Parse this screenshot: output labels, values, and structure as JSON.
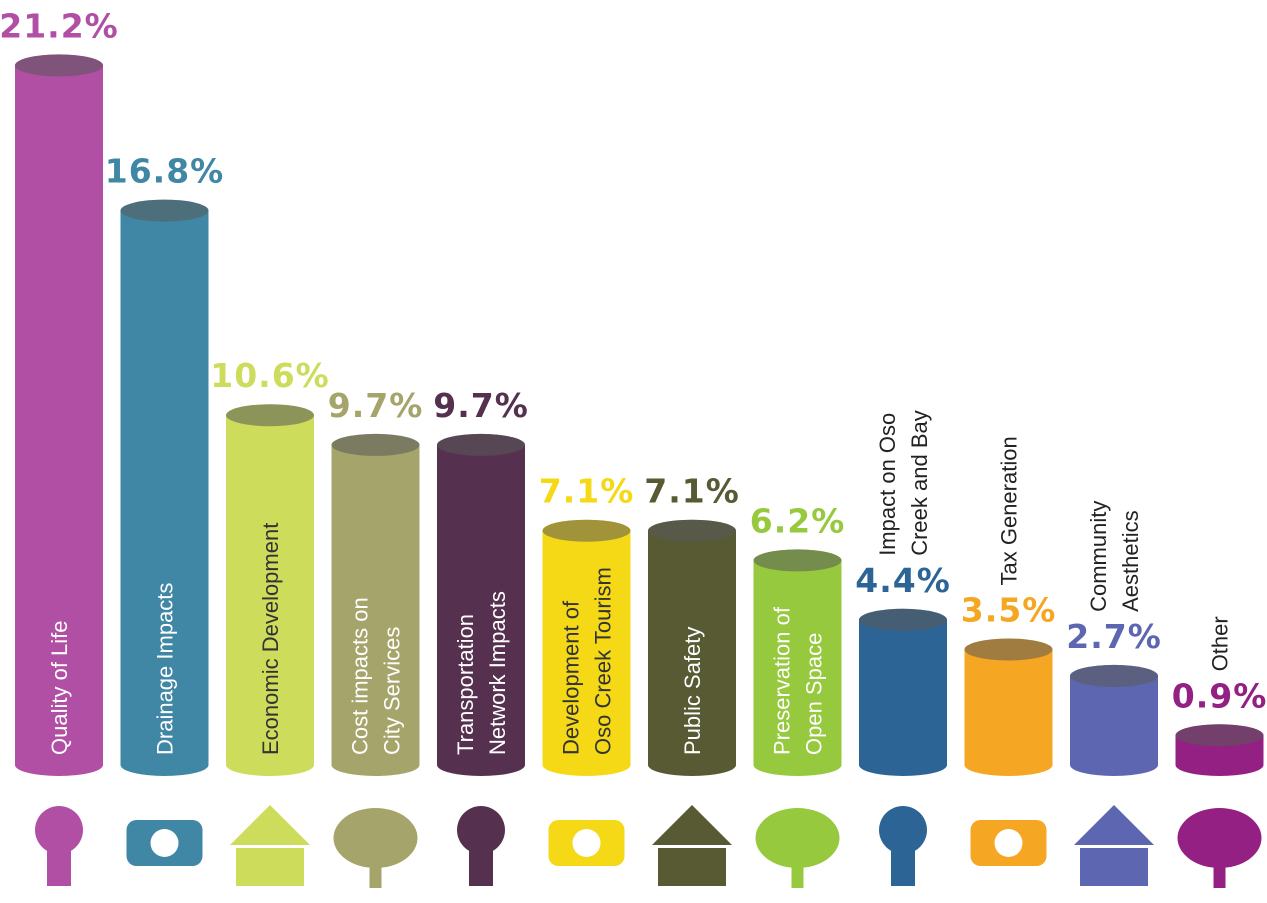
{
  "chart_data": {
    "type": "bar",
    "categories": [
      [
        "Quality of Life"
      ],
      [
        "Drainage Impacts"
      ],
      [
        "Economic Development"
      ],
      [
        "Cost impacts on",
        "City Services"
      ],
      [
        "Transportation",
        "Network Impacts"
      ],
      [
        "Development of",
        "Oso Creek Tourism"
      ],
      [
        "Public Safety"
      ],
      [
        "Preservation of",
        "Open Space"
      ],
      [
        "Impact on Oso",
        "Creek and Bay"
      ],
      [
        "Tax Generation"
      ],
      [
        "Community",
        "Aesthetics"
      ],
      [
        "Other"
      ]
    ],
    "values": [
      21.2,
      16.8,
      10.6,
      9.7,
      9.7,
      7.1,
      7.1,
      6.2,
      4.4,
      3.5,
      2.7,
      0.9
    ],
    "value_labels": [
      "21.2%",
      "16.8%",
      "10.6%",
      "9.7%",
      "9.7%",
      "7.1%",
      "7.1%",
      "6.2%",
      "4.4%",
      "3.5%",
      "2.7%",
      "0.9%"
    ],
    "colors": [
      "#b04fa3",
      "#3f87a4",
      "#cddc5a",
      "#a5a46b",
      "#56304f",
      "#f5d916",
      "#575a33",
      "#96c93d",
      "#2d6496",
      "#f5a623",
      "#5d66b0",
      "#932082"
    ]
  }
}
